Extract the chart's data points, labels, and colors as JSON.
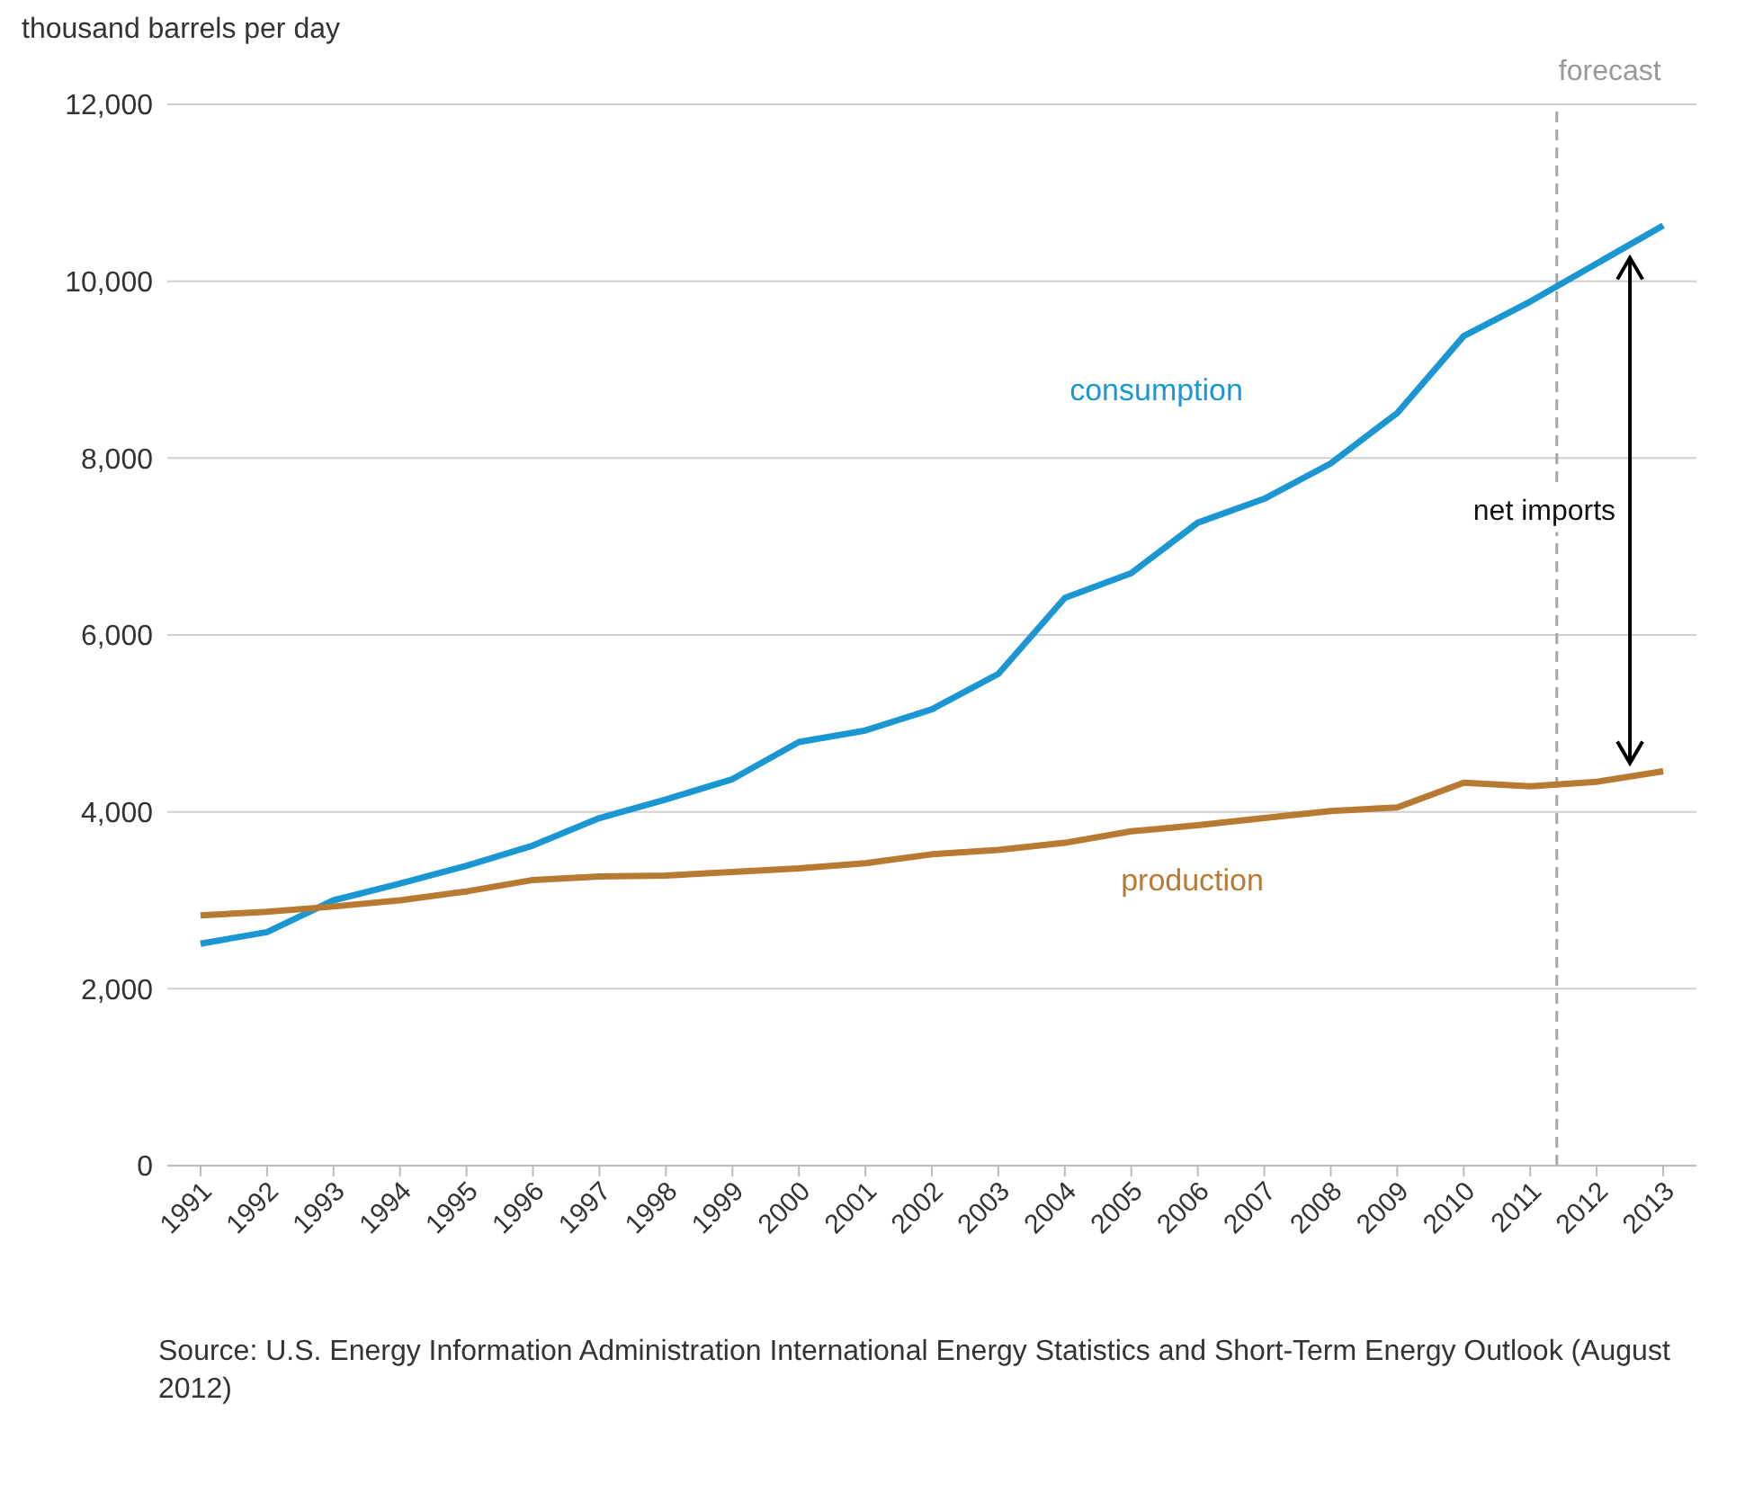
{
  "chart_data": {
    "type": "line",
    "ylabel": "thousand barrels per day",
    "x": [
      1991,
      1992,
      1993,
      1994,
      1995,
      1996,
      1997,
      1998,
      1999,
      2000,
      2001,
      2002,
      2003,
      2004,
      2005,
      2006,
      2007,
      2008,
      2009,
      2010,
      2011,
      2012,
      2013
    ],
    "xlim": [
      1990.5,
      2013.5
    ],
    "xticks": [
      1991,
      1992,
      1993,
      1994,
      1995,
      1996,
      1997,
      1998,
      1999,
      2000,
      2001,
      2002,
      2003,
      2004,
      2005,
      2006,
      2007,
      2008,
      2009,
      2010,
      2011,
      2012,
      2013
    ],
    "ylim": [
      0,
      12000
    ],
    "yticks": [
      0,
      {
        "value": 2000,
        "label": "2,000"
      },
      {
        "value": 4000,
        "label": "4,000"
      },
      {
        "value": 6000,
        "label": "6,000"
      },
      {
        "value": 8000,
        "label": "8,000"
      },
      {
        "value": 10000,
        "label": "10,000"
      },
      {
        "value": 12000,
        "label": "12,000"
      }
    ],
    "series": [
      {
        "name": "consumption",
        "color": "#1a96d2",
        "values": [
          2510,
          2640,
          3000,
          3190,
          3390,
          3620,
          3930,
          4140,
          4370,
          4790,
          4920,
          5160,
          5560,
          6420,
          6700,
          7270,
          7540,
          7940,
          8510,
          9380,
          9770,
          10200,
          10630
        ]
      },
      {
        "name": "production",
        "color": "#b87a33",
        "values": [
          2830,
          2870,
          2930,
          3000,
          3100,
          3230,
          3270,
          3280,
          3320,
          3360,
          3420,
          3520,
          3570,
          3650,
          3780,
          3850,
          3930,
          4010,
          4050,
          4330,
          4290,
          4340,
          4460
        ]
      }
    ],
    "ref_lines": [
      {
        "axis": "x",
        "value": 2011.4,
        "label": "forecast",
        "color": "#a6a6a6",
        "line_style": "dashed"
      }
    ],
    "annotations": [
      "net imports",
      "Source: U.S. Energy Information Administration International Energy Statistics and Short-Term Energy Outlook (August 2012)"
    ],
    "grid": "y",
    "legend": false,
    "marker": "none",
    "line_style": "solid"
  }
}
